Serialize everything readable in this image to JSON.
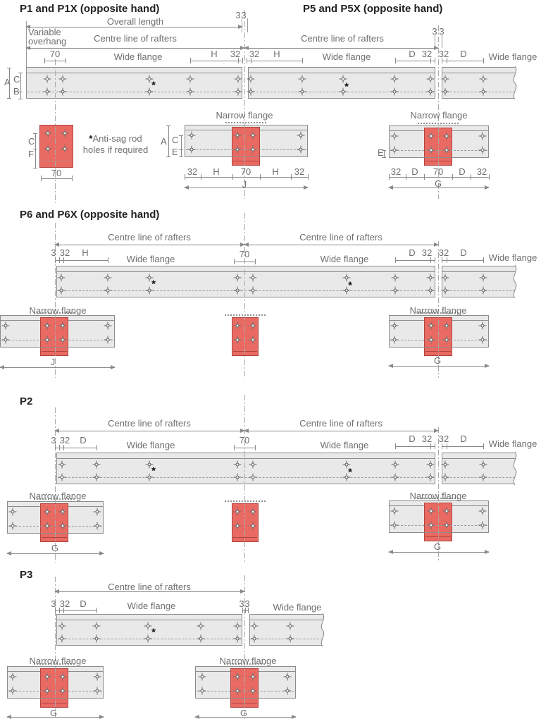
{
  "strings": {
    "overall_length": "Overall length",
    "variable_line1": "Variable",
    "variable_line2": "overhang",
    "centre_line": "Centre line of rafters",
    "wide_flange": "Wide flange",
    "narrow_flange": "Narrow flange",
    "asterisk": "*",
    "note_line1": "Anti-sag rod",
    "note_line2": "holes if required"
  },
  "sections": {
    "p1": {
      "title": "P1 and P1X (opposite hand)"
    },
    "p5": {
      "title": "P5 and P5X (opposite hand)"
    },
    "p6": {
      "title": "P6 and P6X (opposite hand)"
    },
    "p2": {
      "title": "P2"
    },
    "p3": {
      "title": "P3"
    }
  },
  "dims": {
    "n3": "3",
    "n32": "32",
    "n70": "70",
    "A": "A",
    "B": "B",
    "C": "C",
    "D": "D",
    "E": "E",
    "F": "F",
    "G": "G",
    "H": "H",
    "J": "J"
  },
  "colors": {
    "beam_fill": "#e9e9e9",
    "line": "#8c8c8c",
    "dash": "#9a9a9a",
    "centre_line": "#a9a9a9",
    "cleat_fill": "#e96a62",
    "cleat_border": "#b04540",
    "text": "#6f6f6f"
  }
}
